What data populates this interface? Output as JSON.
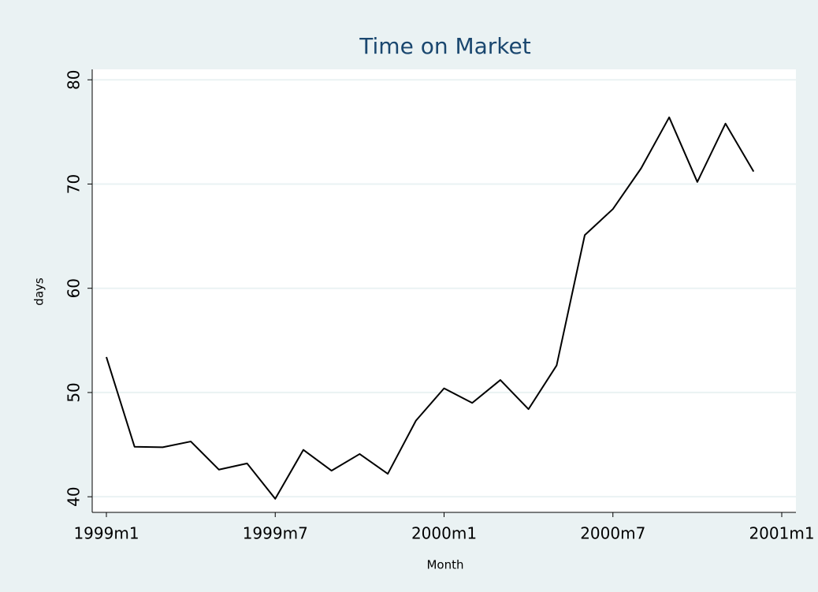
{
  "chart_data": {
    "type": "line",
    "title": "Time on Market",
    "x_label": "Month",
    "y_label": "days",
    "x": [
      "1999m1",
      "1999m2",
      "1999m3",
      "1999m4",
      "1999m5",
      "1999m6",
      "1999m7",
      "1999m8",
      "1999m9",
      "1999m10",
      "1999m11",
      "1999m12",
      "2000m1",
      "2000m2",
      "2000m3",
      "2000m4",
      "2000m5",
      "2000m6",
      "2000m7",
      "2000m8",
      "2000m9",
      "2000m10",
      "2000m11",
      "2000m12"
    ],
    "series": [
      {
        "name": "days",
        "color": "#000000",
        "values": [
          53.4,
          44.8,
          44.75,
          45.3,
          42.6,
          43.2,
          39.8,
          44.5,
          42.5,
          44.1,
          42.2,
          47.3,
          50.4,
          49.0,
          51.2,
          48.4,
          52.6,
          65.1,
          67.6,
          71.5,
          76.4,
          70.2,
          75.8,
          71.2
        ]
      }
    ],
    "xlim": [
      "1999m1",
      "2001m1"
    ],
    "xticks": [
      "1999m1",
      "1999m7",
      "2000m1",
      "2000m7",
      "2001m1"
    ],
    "ylim": [
      38.5,
      81
    ],
    "yticks": [
      40,
      50,
      60,
      70,
      80
    ],
    "grid": true
  }
}
